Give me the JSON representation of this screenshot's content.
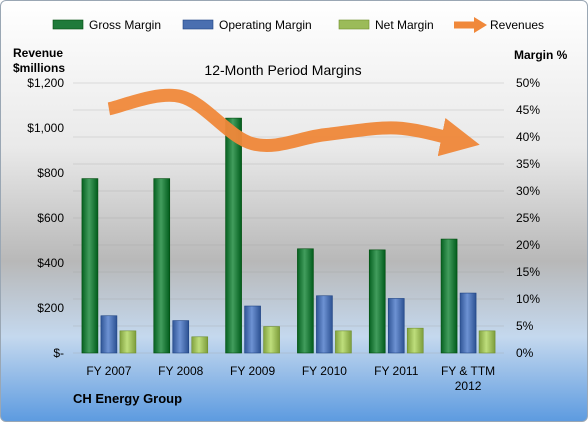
{
  "chart_data": {
    "type": "bar",
    "title": "12-Month Period Margins",
    "ylabel_left_line1": "Revenue",
    "ylabel_left_line2": "$millions",
    "ylabel_right": "Margin %",
    "company_label": "CH Energy Group",
    "categories": [
      [
        "FY 2007"
      ],
      [
        "FY 2008"
      ],
      [
        "FY 2009"
      ],
      [
        "FY 2010"
      ],
      [
        "FY 2011"
      ],
      [
        "FY & TTM",
        "2012"
      ]
    ],
    "left_axis": {
      "ylim": [
        0,
        1200
      ],
      "tick_labels": [
        "$-",
        "$200",
        "$400",
        "$600",
        "$800",
        "$1,000",
        "$1,200"
      ]
    },
    "right_axis": {
      "ylim": [
        0,
        50
      ],
      "tick_labels": [
        "0%",
        "5%",
        "10%",
        "15%",
        "20%",
        "25%",
        "30%",
        "35%",
        "40%",
        "45%",
        "50%"
      ]
    },
    "legend_position": "top",
    "series": [
      {
        "name": "Gross Margin",
        "type": "bar",
        "axis": "right",
        "color": "#1f7a3a",
        "values": [
          32.3,
          32.3,
          43.5,
          19.3,
          19.1,
          21.1
        ]
      },
      {
        "name": "Operating Margin",
        "type": "bar",
        "axis": "right",
        "color": "#4a6fb0",
        "values": [
          6.9,
          6.0,
          8.7,
          10.6,
          10.1,
          11.1
        ]
      },
      {
        "name": "Net Margin",
        "type": "bar",
        "axis": "right",
        "color": "#9bbb59",
        "values": [
          4.1,
          3.0,
          4.9,
          4.1,
          4.6,
          4.1
        ]
      },
      {
        "name": "Revenues",
        "type": "line",
        "axis": "left",
        "color": "#f0883a",
        "values": [
          1085,
          1140,
          930,
          970,
          1000,
          945
        ]
      }
    ]
  }
}
